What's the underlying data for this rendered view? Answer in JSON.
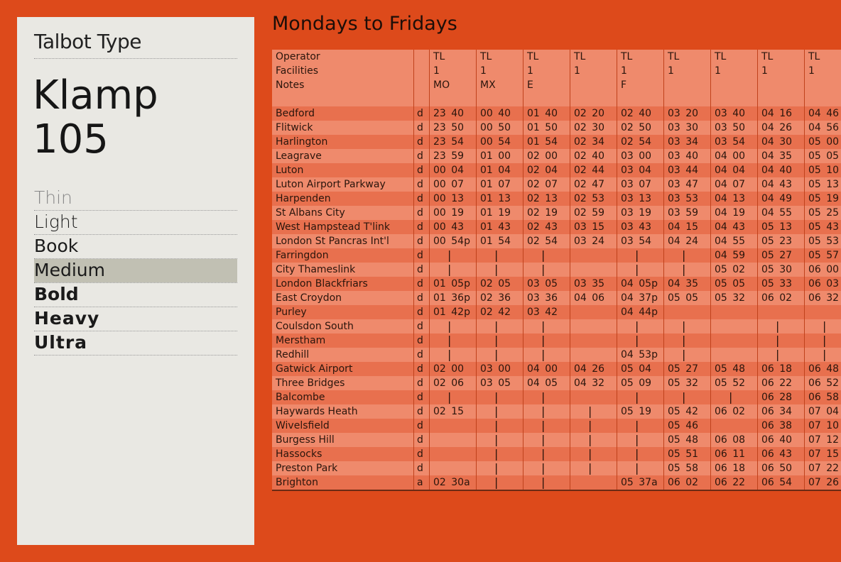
{
  "specimen": {
    "foundry": "Talbot Type",
    "family": "Klamp 105",
    "weights": [
      "Thin",
      "Light",
      "Book",
      "Medium",
      "Bold",
      "Heavy",
      "Ultra"
    ]
  },
  "timetable": {
    "title": "Mondays to Fridays",
    "header_labels": [
      "Operator",
      "Facilities",
      "Notes"
    ],
    "stations": [
      "Bedford",
      "Flitwick",
      "Harlington",
      "Leagrave",
      "Luton",
      "Luton Airport Parkway",
      "Harpenden",
      "St Albans City",
      "West Hampstead T'link",
      "London St Pancras Int'l",
      "Farringdon",
      "City Thameslink",
      "London Blackfriars",
      "East Croydon",
      "Purley",
      "Coulsdon South",
      "Merstham",
      "Redhill",
      "Gatwick Airport",
      "Three Bridges",
      "Balcombe",
      "Haywards Heath",
      "Wivelsfield",
      "Burgess Hill",
      "Hassocks",
      "Preston Park",
      "Brighton"
    ],
    "arr_dep": [
      "d",
      "d",
      "d",
      "d",
      "d",
      "d",
      "d",
      "d",
      "d",
      "d",
      "d",
      "d",
      "d",
      "d",
      "d",
      "d",
      "d",
      "d",
      "d",
      "d",
      "d",
      "d",
      "d",
      "d",
      "d",
      "d",
      "a"
    ],
    "services": [
      {
        "operator": "TL",
        "facilities": "1",
        "notes": "MO",
        "times": [
          "23 40",
          "23 50",
          "23 54",
          "23 59",
          "00 04",
          "00 07",
          "00 13",
          "00 19",
          "00 43",
          "00 54p",
          "|",
          "|",
          "01 05p",
          "01 36p",
          "01 42p",
          "|",
          "|",
          "|",
          "02 00",
          "02 06",
          "|",
          "02 15",
          null,
          null,
          null,
          null,
          "02 30a"
        ]
      },
      {
        "operator": "TL",
        "facilities": "1",
        "notes": "MX",
        "times": [
          "00 40",
          "00 50",
          "00 54",
          "01 00",
          "01 04",
          "01 07",
          "01 13",
          "01 19",
          "01 43",
          "01 54",
          "|",
          "|",
          "02 05",
          "02 36",
          "02 42",
          "|",
          "|",
          "|",
          "03 00",
          "03 05",
          "|",
          "|",
          "|",
          "|",
          "|",
          "|",
          "|"
        ]
      },
      {
        "operator": "TL",
        "facilities": "1",
        "notes": "E",
        "times": [
          "01 40",
          "01 50",
          "01 54",
          "02 00",
          "02 04",
          "02 07",
          "02 13",
          "02 19",
          "02 43",
          "02 54",
          "|",
          "|",
          "03 05",
          "03 36",
          "03 42",
          "|",
          "|",
          "|",
          "04 00",
          "04 05",
          "|",
          "|",
          "|",
          "|",
          "|",
          "|",
          "|"
        ]
      },
      {
        "operator": "TL",
        "facilities": "1",
        "times": [
          "02 20",
          "02 30",
          "02 34",
          "02 40",
          "02 44",
          "02 47",
          "02 53",
          "02 59",
          "03 15",
          "03 24",
          null,
          null,
          "03 35",
          "04 06",
          null,
          null,
          null,
          null,
          "04 26",
          "04 32",
          null,
          "|",
          "|",
          "|",
          "|",
          "|",
          null
        ]
      },
      {
        "operator": "TL",
        "facilities": "1",
        "notes": "F",
        "times": [
          "02 40",
          "02 50",
          "02 54",
          "03 00",
          "03 04",
          "03 07",
          "03 13",
          "03 19",
          "03 43",
          "03 54",
          "|",
          "|",
          "04 05p",
          "04 37p",
          "04 44p",
          "|",
          "|",
          "04 53p",
          "05 04",
          "05 09",
          "|",
          "05 19",
          "|",
          "|",
          "|",
          "|",
          "05 37a"
        ]
      },
      {
        "operator": "TL",
        "facilities": "1",
        "times": [
          "03 20",
          "03 30",
          "03 34",
          "03 40",
          "03 44",
          "03 47",
          "03 53",
          "03 59",
          "04 15",
          "04 24",
          "|",
          "|",
          "04 35",
          "05 05",
          null,
          "|",
          "|",
          "|",
          "05 27",
          "05 32",
          "|",
          "05 42",
          "05 46",
          "05 48",
          "05 51",
          "05 58",
          "06 02"
        ]
      },
      {
        "operator": "TL",
        "facilities": "1",
        "times": [
          "03 40",
          "03 50",
          "03 54",
          "04 00",
          "04 04",
          "04 07",
          "04 13",
          "04 19",
          "04 43",
          "04 55",
          "04 59",
          "05 02",
          "05 05",
          "05 32",
          null,
          null,
          null,
          null,
          "05 48",
          "05 52",
          "|",
          "06 02",
          null,
          "06 08",
          "06 11",
          "06 18",
          "06 22"
        ]
      },
      {
        "operator": "TL",
        "facilities": "1",
        "times": [
          "04 16",
          "04 26",
          "04 30",
          "04 35",
          "04 40",
          "04 43",
          "04 49",
          "04 55",
          "05 13",
          "05 23",
          "05 27",
          "05 30",
          "05 33",
          "06 02",
          null,
          "|",
          "|",
          "|",
          "06 18",
          "06 22",
          "06 28",
          "06 34",
          "06 38",
          "06 40",
          "06 43",
          "06 50",
          "06 54"
        ]
      },
      {
        "operator": "TL",
        "facilities": "1",
        "times": [
          "04 46",
          "04 56",
          "05 00",
          "05 05",
          "05 10",
          "05 13",
          "05 19",
          "05 25",
          "05 43",
          "05 53",
          "05 57",
          "06 00",
          "06 03",
          "06 32",
          null,
          "|",
          "|",
          "|",
          "06 48",
          "06 52",
          "06 58",
          "07 04",
          "07 10",
          "07 12",
          "07 15",
          "07 22",
          "07 26"
        ]
      }
    ]
  }
}
